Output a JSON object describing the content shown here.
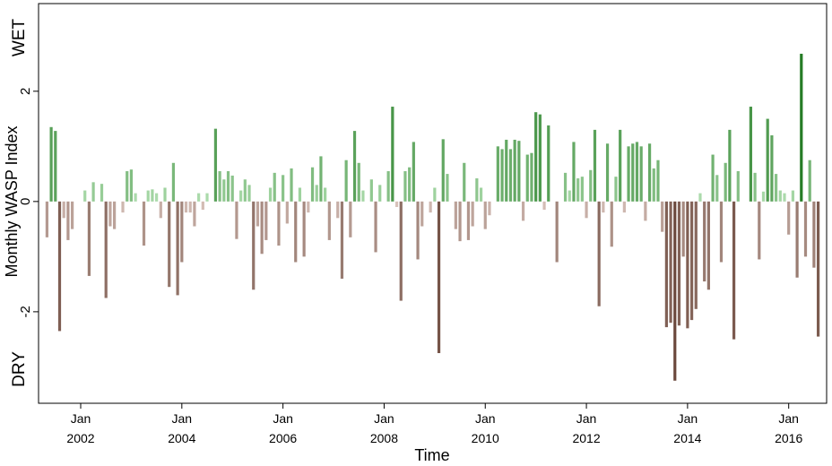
{
  "chart_data": {
    "type": "bar",
    "xlabel": "Time",
    "ylabel": "Monthly WASP Index",
    "wet_label": "WET",
    "dry_label": "DRY",
    "colors": {
      "wet": [
        "#d4f7d4",
        "#137013"
      ],
      "dry": [
        "#efdcd5",
        "#6b483c"
      ]
    },
    "xlim": [
      "2001-03",
      "2016-10"
    ],
    "xticks": [
      {
        "value": "2002-01",
        "label": "Jan\n2002"
      },
      {
        "value": "2004-01",
        "label": "Jan\n2004"
      },
      {
        "value": "2006-01",
        "label": "Jan\n2006"
      },
      {
        "value": "2008-01",
        "label": "Jan\n2008"
      },
      {
        "value": "2010-01",
        "label": "Jan\n2010"
      },
      {
        "value": "2012-01",
        "label": "Jan\n2012"
      },
      {
        "value": "2014-01",
        "label": "Jan\n2014"
      },
      {
        "value": "2016-01",
        "label": "Jan\n2016"
      }
    ],
    "ylim": [
      -3.66,
      3.59
    ],
    "yticks": [
      -2,
      0,
      2
    ],
    "x": [
      "2001-05",
      "2001-06",
      "2001-07",
      "2001-08",
      "2001-09",
      "2001-10",
      "2001-11",
      "2001-12",
      "2002-01",
      "2002-02",
      "2002-03",
      "2002-04",
      "2002-05",
      "2002-06",
      "2002-07",
      "2002-08",
      "2002-09",
      "2002-10",
      "2002-11",
      "2002-12",
      "2003-01",
      "2003-02",
      "2003-03",
      "2003-04",
      "2003-05",
      "2003-06",
      "2003-07",
      "2003-08",
      "2003-09",
      "2003-10",
      "2003-11",
      "2003-12",
      "2004-01",
      "2004-02",
      "2004-03",
      "2004-04",
      "2004-05",
      "2004-06",
      "2004-07",
      "2004-08",
      "2004-09",
      "2004-10",
      "2004-11",
      "2004-12",
      "2005-01",
      "2005-02",
      "2005-03",
      "2005-04",
      "2005-05",
      "2005-06",
      "2005-07",
      "2005-08",
      "2005-09",
      "2005-10",
      "2005-11",
      "2005-12",
      "2006-01",
      "2006-02",
      "2006-03",
      "2006-04",
      "2006-05",
      "2006-06",
      "2006-07",
      "2006-08",
      "2006-09",
      "2006-10",
      "2006-11",
      "2006-12",
      "2007-01",
      "2007-02",
      "2007-03",
      "2007-04",
      "2007-05",
      "2007-06",
      "2007-07",
      "2007-08",
      "2007-09",
      "2007-10",
      "2007-11",
      "2007-12",
      "2008-01",
      "2008-02",
      "2008-03",
      "2008-04",
      "2008-05",
      "2008-06",
      "2008-07",
      "2008-08",
      "2008-09",
      "2008-10",
      "2008-11",
      "2008-12",
      "2009-01",
      "2009-02",
      "2009-03",
      "2009-04",
      "2009-05",
      "2009-06",
      "2009-07",
      "2009-08",
      "2009-09",
      "2009-10",
      "2009-11",
      "2009-12",
      "2010-01",
      "2010-02",
      "2010-03",
      "2010-04",
      "2010-05",
      "2010-06",
      "2010-07",
      "2010-08",
      "2010-09",
      "2010-10",
      "2010-11",
      "2010-12",
      "2011-01",
      "2011-02",
      "2011-03",
      "2011-04",
      "2011-05",
      "2011-06",
      "2011-07",
      "2011-08",
      "2011-09",
      "2011-10",
      "2011-11",
      "2011-12",
      "2012-01",
      "2012-02",
      "2012-03",
      "2012-04",
      "2012-05",
      "2012-06",
      "2012-07",
      "2012-08",
      "2012-09",
      "2012-10",
      "2012-11",
      "2012-12",
      "2013-01",
      "2013-02",
      "2013-03",
      "2013-04",
      "2013-05",
      "2013-06",
      "2013-07",
      "2013-08",
      "2013-09",
      "2013-10",
      "2013-11",
      "2013-12",
      "2014-01",
      "2014-02",
      "2014-03",
      "2014-04",
      "2014-05",
      "2014-06",
      "2014-07",
      "2014-08",
      "2014-09",
      "2014-10",
      "2014-11",
      "2014-12",
      "2015-01",
      "2015-02",
      "2015-03",
      "2015-04",
      "2015-05",
      "2015-06",
      "2015-07",
      "2015-08",
      "2015-09",
      "2015-10",
      "2015-11",
      "2015-12",
      "2016-01",
      "2016-02",
      "2016-03",
      "2016-04",
      "2016-05",
      "2016-06",
      "2016-07",
      "2016-08"
    ],
    "values": [
      -0.65,
      1.35,
      1.28,
      -2.35,
      -0.3,
      -0.7,
      -0.5,
      null,
      null,
      0.2,
      -1.35,
      0.35,
      null,
      0.32,
      -1.75,
      -0.45,
      -0.5,
      null,
      -0.2,
      0.55,
      0.58,
      0.15,
      null,
      -0.8,
      0.2,
      0.22,
      0.15,
      -0.3,
      0.25,
      -1.55,
      0.7,
      -1.7,
      -1.1,
      -0.2,
      -0.2,
      -0.45,
      0.15,
      -0.15,
      0.15,
      null,
      1.32,
      0.55,
      0.4,
      0.55,
      0.47,
      -0.68,
      0.2,
      0.4,
      0.3,
      -1.6,
      -0.45,
      -0.95,
      -0.7,
      0.25,
      0.52,
      -0.8,
      0.48,
      -0.4,
      0.6,
      -1.1,
      0.25,
      -1.0,
      -0.2,
      0.62,
      0.3,
      0.82,
      0.25,
      -0.7,
      null,
      -0.3,
      -1.4,
      0.75,
      -0.65,
      1.28,
      0.7,
      0.2,
      null,
      0.4,
      -0.92,
      0.3,
      null,
      0.55,
      1.72,
      -0.1,
      -1.8,
      0.55,
      0.62,
      1.08,
      -1.05,
      -0.45,
      null,
      -0.2,
      0.25,
      -2.75,
      1.13,
      0.5,
      null,
      -0.5,
      -0.72,
      0.7,
      -0.7,
      -0.45,
      0.42,
      0.25,
      -0.5,
      -0.25,
      null,
      1.0,
      0.95,
      1.12,
      0.95,
      1.12,
      1.1,
      -0.35,
      0.85,
      0.88,
      1.62,
      1.58,
      -0.15,
      1.38,
      null,
      -1.1,
      null,
      0.52,
      0.2,
      1.08,
      0.42,
      0.45,
      -0.3,
      0.57,
      1.3,
      -1.9,
      -0.2,
      1.05,
      -0.82,
      0.45,
      1.3,
      -0.2,
      1.0,
      1.05,
      1.08,
      1.0,
      -0.35,
      1.05,
      0.6,
      0.75,
      -0.55,
      -2.28,
      -2.2,
      -3.25,
      -2.25,
      -1.0,
      -2.3,
      -2.15,
      -1.95,
      0.15,
      -1.45,
      -1.6,
      0.85,
      0.48,
      -1.1,
      0.7,
      1.3,
      -2.5,
      0.55,
      null,
      null,
      1.72,
      0.52,
      -1.05,
      0.18,
      1.5,
      1.2,
      0.5,
      0.2,
      0.15,
      -0.6,
      0.2,
      -1.38,
      2.68,
      -1.0,
      0.75,
      -1.2,
      -2.45
    ]
  }
}
